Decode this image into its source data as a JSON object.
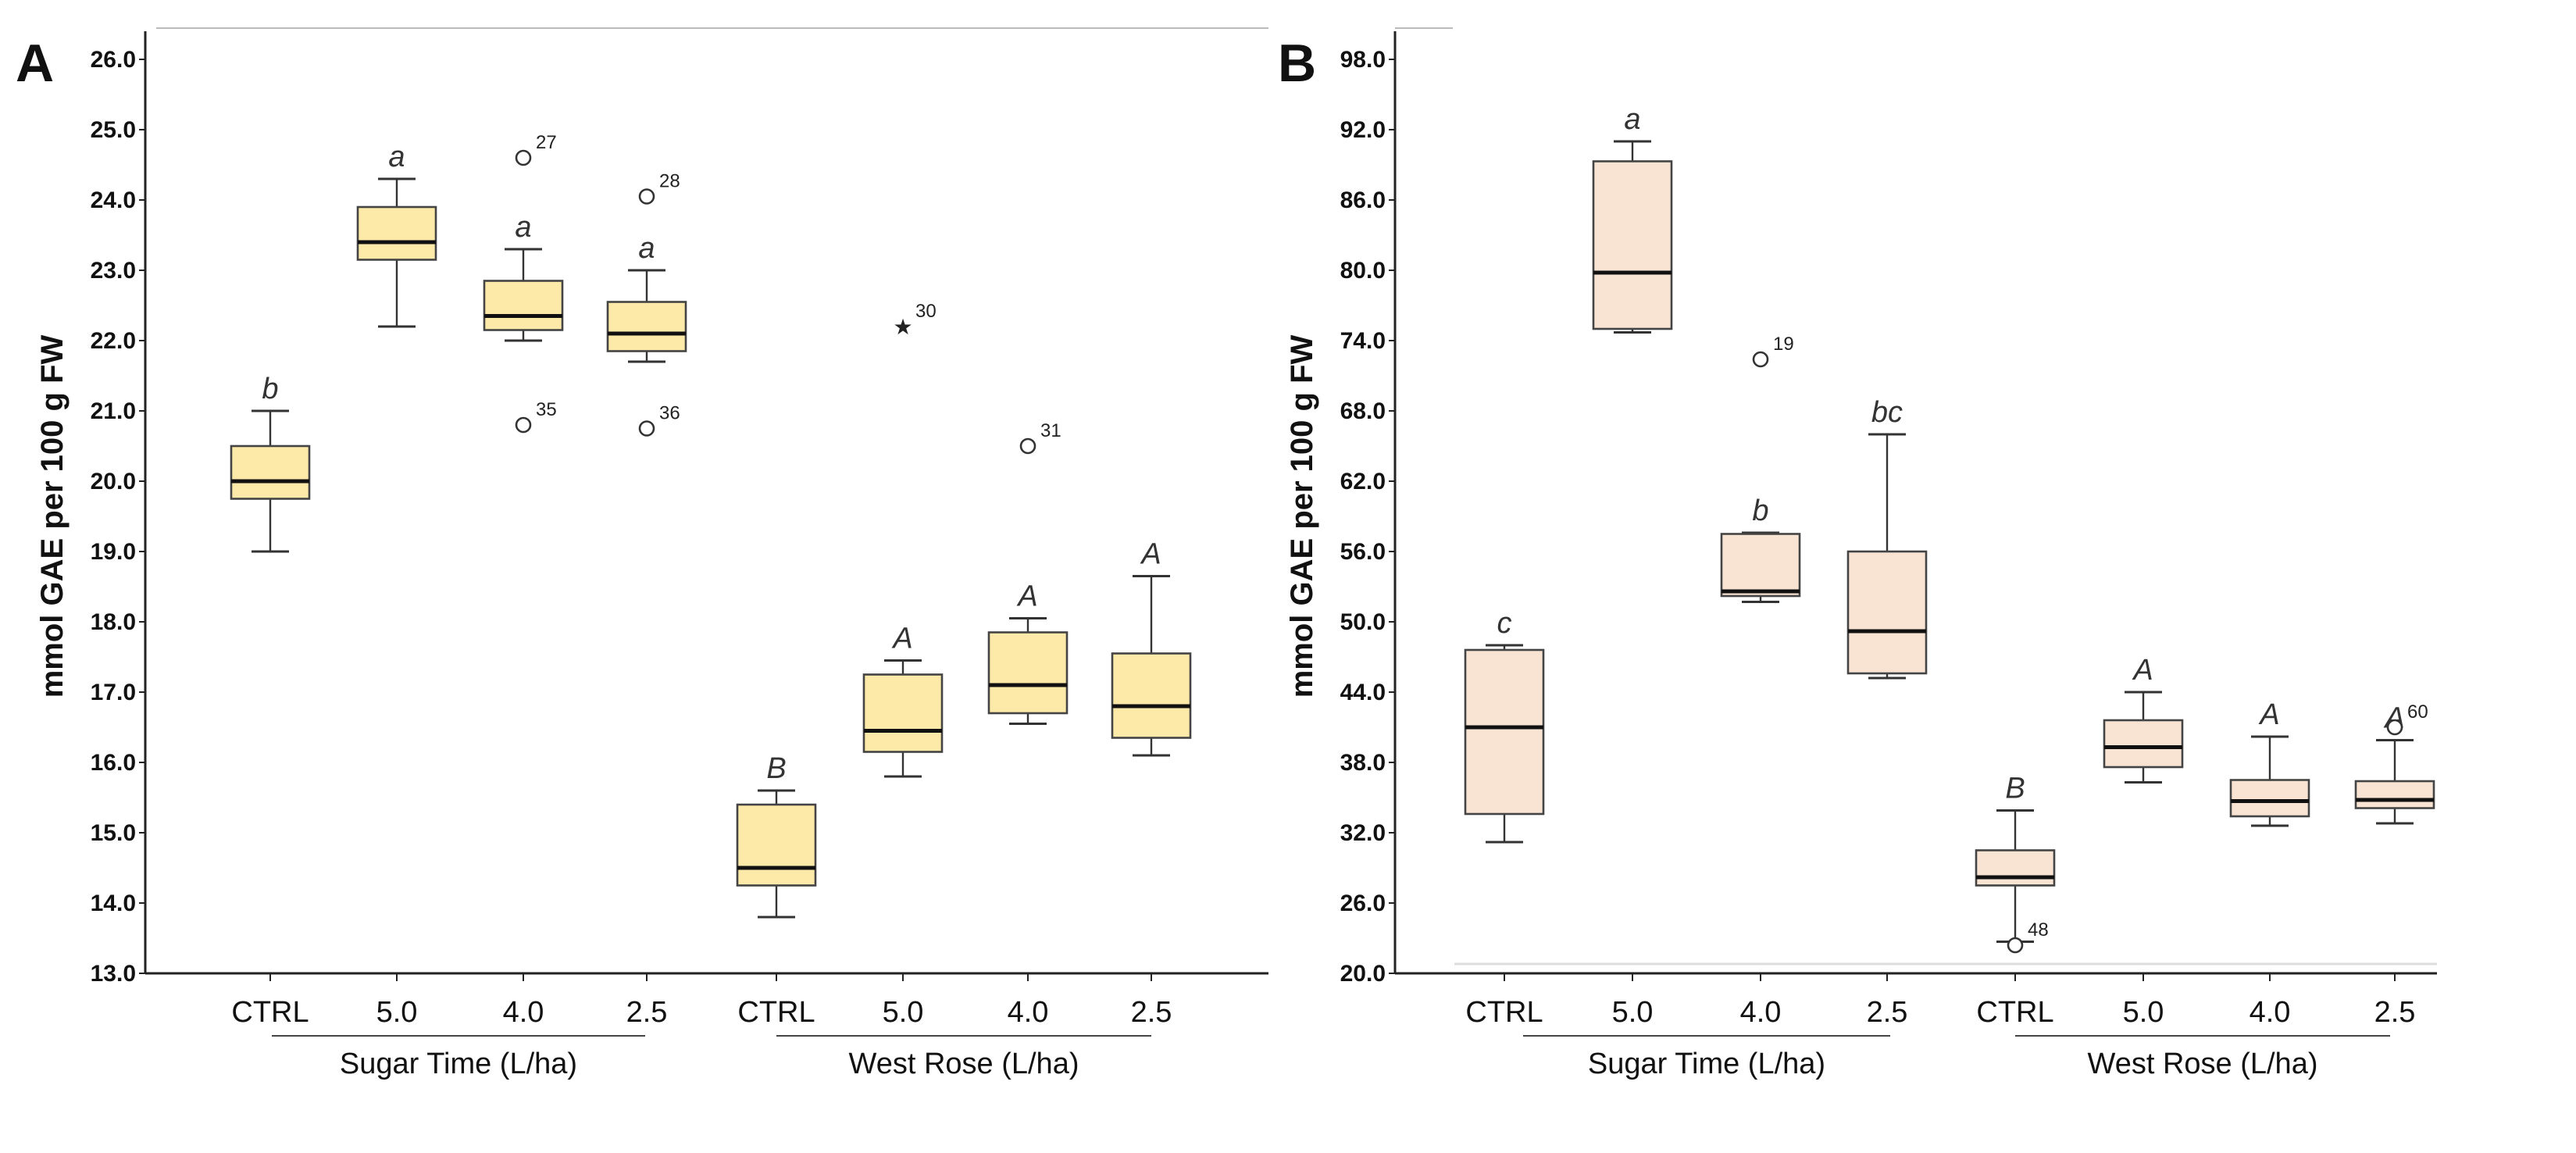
{
  "chart_data": [
    {
      "type": "box",
      "panel_label": "A",
      "ylabel": "mmol GAE per 100 g FW",
      "ylim": [
        13.0,
        26.0
      ],
      "yticks": [
        "13.0",
        "14.0",
        "15.0",
        "16.0",
        "17.0",
        "18.0",
        "19.0",
        "20.0",
        "21.0",
        "22.0",
        "23.0",
        "24.0",
        "25.0",
        "26.0"
      ],
      "fill_color": "#fde9a8",
      "groups": [
        {
          "label": "Sugar Time (L/ha)",
          "categories": [
            "CTRL",
            "5.0",
            "4.0",
            "2.5"
          ]
        },
        {
          "label": "West Rose (L/ha)",
          "categories": [
            "CTRL",
            "5.0",
            "4.0",
            "2.5"
          ]
        }
      ],
      "boxes": [
        {
          "category": "CTRL",
          "group": "Sugar Time",
          "min": 19.0,
          "q1": 19.75,
          "median": 20.0,
          "q3": 20.5,
          "max": 21.0,
          "letter": "b",
          "outliers": []
        },
        {
          "category": "5.0",
          "group": "Sugar Time",
          "min": 22.2,
          "q1": 23.15,
          "median": 23.4,
          "q3": 23.9,
          "max": 24.3,
          "letter": "a",
          "outliers": []
        },
        {
          "category": "4.0",
          "group": "Sugar Time",
          "min": 22.0,
          "q1": 22.15,
          "median": 22.35,
          "q3": 22.85,
          "max": 23.3,
          "letter": "a",
          "outliers": [
            {
              "value": 24.6,
              "label": "27",
              "marker": "circle"
            },
            {
              "value": 20.8,
              "label": "35",
              "marker": "circle"
            }
          ]
        },
        {
          "category": "2.5",
          "group": "Sugar Time",
          "min": 21.7,
          "q1": 21.85,
          "median": 22.1,
          "q3": 22.55,
          "max": 23.0,
          "letter": "a",
          "outliers": [
            {
              "value": 24.05,
              "label": "28",
              "marker": "circle"
            },
            {
              "value": 20.75,
              "label": "36",
              "marker": "circle"
            }
          ]
        },
        {
          "category": "CTRL",
          "group": "West Rose",
          "min": 13.8,
          "q1": 14.25,
          "median": 14.5,
          "q3": 15.4,
          "max": 15.6,
          "letter": "B",
          "outliers": []
        },
        {
          "category": "5.0",
          "group": "West Rose",
          "min": 15.8,
          "q1": 16.15,
          "median": 16.45,
          "q3": 17.25,
          "max": 17.45,
          "letter": "A",
          "outliers": [
            {
              "value": 22.2,
              "label": "30",
              "marker": "star"
            }
          ]
        },
        {
          "category": "4.0",
          "group": "West Rose",
          "min": 16.55,
          "q1": 16.7,
          "median": 17.1,
          "q3": 17.85,
          "max": 18.05,
          "letter": "A",
          "outliers": [
            {
              "value": 20.5,
              "label": "31",
              "marker": "circle"
            }
          ]
        },
        {
          "category": "2.5",
          "group": "West Rose",
          "min": 16.1,
          "q1": 16.35,
          "median": 16.8,
          "q3": 17.55,
          "max": 18.65,
          "letter": "A",
          "outliers": []
        }
      ]
    },
    {
      "type": "box",
      "panel_label": "B",
      "ylabel": "mmol GAE per 100 g FW",
      "ylim": [
        20.0,
        98.0
      ],
      "yticks": [
        "20.0",
        "26.0",
        "32.0",
        "38.0",
        "44.0",
        "50.0",
        "56.0",
        "62.0",
        "68.0",
        "74.0",
        "80.0",
        "86.0",
        "92.0",
        "98.0"
      ],
      "fill_color": "#f9e3d3",
      "groups": [
        {
          "label": "Sugar Time (L/ha)",
          "categories": [
            "CTRL",
            "5.0",
            "4.0",
            "2.5"
          ]
        },
        {
          "label": "West Rose (L/ha)",
          "categories": [
            "CTRL",
            "5.0",
            "4.0",
            "2.5"
          ]
        }
      ],
      "boxes": [
        {
          "category": "CTRL",
          "group": "Sugar Time",
          "min": 31.2,
          "q1": 33.6,
          "median": 41.0,
          "q3": 47.6,
          "max": 48.0,
          "letter": "c",
          "outliers": []
        },
        {
          "category": "5.0",
          "group": "Sugar Time",
          "min": 74.7,
          "q1": 75.0,
          "median": 79.8,
          "q3": 89.3,
          "max": 91.0,
          "letter": "a",
          "outliers": []
        },
        {
          "category": "4.0",
          "group": "Sugar Time",
          "min": 51.7,
          "q1": 52.2,
          "median": 52.6,
          "q3": 57.5,
          "max": 57.6,
          "letter": "b",
          "outliers": [
            {
              "value": 72.4,
              "label": "19",
              "marker": "circle"
            }
          ]
        },
        {
          "category": "2.5",
          "group": "Sugar Time",
          "min": 45.2,
          "q1": 45.6,
          "median": 49.2,
          "q3": 56.0,
          "max": 66.0,
          "letter": "bc",
          "outliers": []
        },
        {
          "category": "CTRL",
          "group": "West Rose",
          "min": 22.7,
          "q1": 27.5,
          "median": 28.2,
          "q3": 30.5,
          "max": 33.9,
          "letter": "B",
          "outliers": [
            {
              "value": 22.4,
              "label": "48",
              "marker": "circle"
            }
          ]
        },
        {
          "category": "5.0",
          "group": "West Rose",
          "min": 36.3,
          "q1": 37.6,
          "median": 39.3,
          "q3": 41.6,
          "max": 44.0,
          "letter": "A",
          "outliers": []
        },
        {
          "category": "4.0",
          "group": "West Rose",
          "min": 32.6,
          "q1": 33.4,
          "median": 34.7,
          "q3": 36.5,
          "max": 40.2,
          "letter": "A",
          "outliers": []
        },
        {
          "category": "2.5",
          "group": "West Rose",
          "min": 32.8,
          "q1": 34.1,
          "median": 34.8,
          "q3": 36.4,
          "max": 39.9,
          "letter": "A",
          "outliers": [
            {
              "value": 41.0,
              "label": "60",
              "marker": "circle"
            }
          ]
        }
      ]
    }
  ]
}
